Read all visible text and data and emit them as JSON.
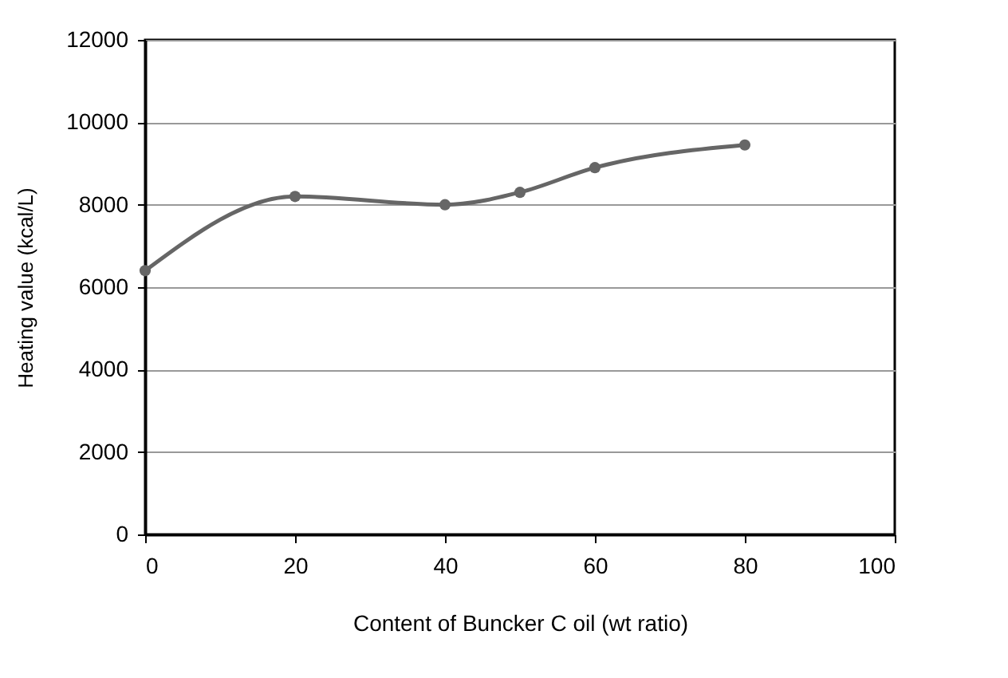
{
  "chart_data": {
    "type": "line",
    "xlabel": "Content of Buncker C oil (wt  ratio)",
    "ylabel": "Heating  value  (kcal/L)",
    "x": [
      0,
      20,
      40,
      50,
      60,
      80
    ],
    "series": [
      {
        "color": "#666666",
        "values": [
          6400,
          8200,
          8000,
          8300,
          8900,
          9450
        ]
      }
    ],
    "xlim": [
      0,
      100
    ],
    "xticks": [
      0,
      20,
      40,
      60,
      80,
      100
    ],
    "ylim": [
      0,
      12000
    ],
    "yticks": [
      0,
      2000,
      4000,
      6000,
      8000,
      10000,
      12000
    ],
    "grid": "y",
    "marker": "circle",
    "line_style": "solid",
    "legend": false
  }
}
